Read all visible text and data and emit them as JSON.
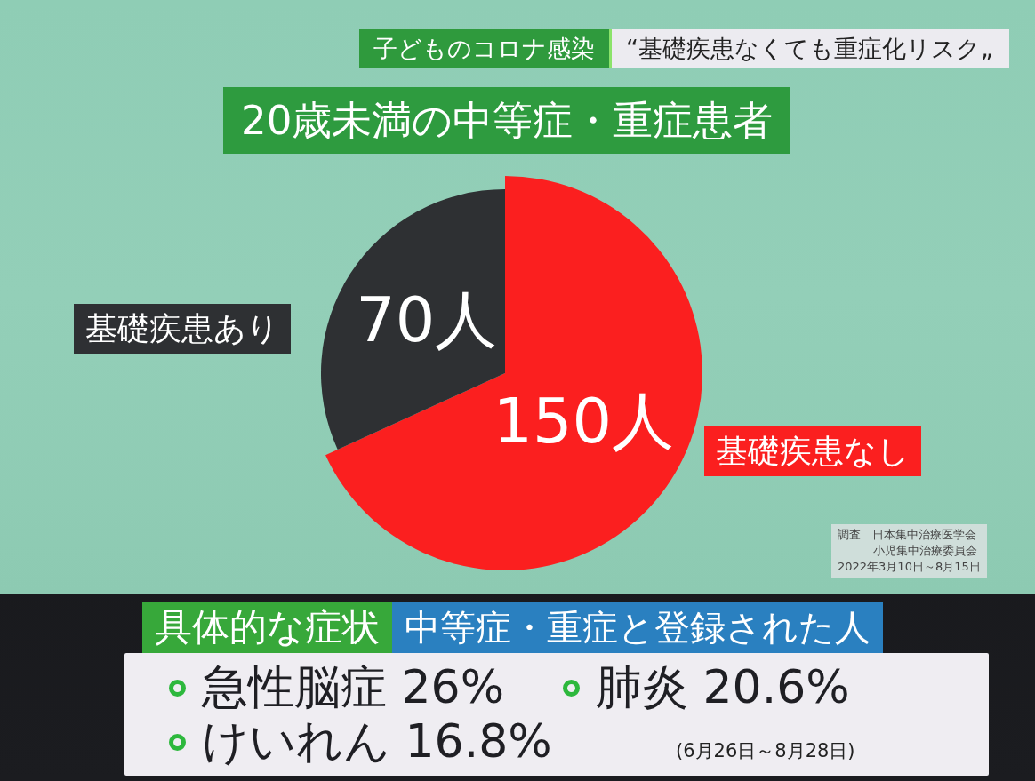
{
  "chart_data": [
    {
      "type": "pie",
      "title": "20歳未満の中等症・重症患者",
      "categories": [
        "基礎疾患なし",
        "基礎疾患あり"
      ],
      "values": [
        150,
        70
      ],
      "colors": [
        "#fb1f1f",
        "#2e3033"
      ],
      "value_labels": [
        "150人",
        "70人"
      ],
      "annotations": [
        "子どものコロナ感染",
        "“基礎疾患なくても重症化リスク„",
        "調査　日本集中治療医学会",
        "小児集中治療委員会",
        "2022年3月10日～8月15日"
      ]
    },
    {
      "type": "other",
      "title": "具体的な症状",
      "subtitle": "中等症・重症と登録された人",
      "annotations": [
        "急性脳症 26%",
        "肺炎 20.6%",
        "けいれん 16.8%",
        "(6月26日～8月28日)"
      ]
    }
  ]
}
